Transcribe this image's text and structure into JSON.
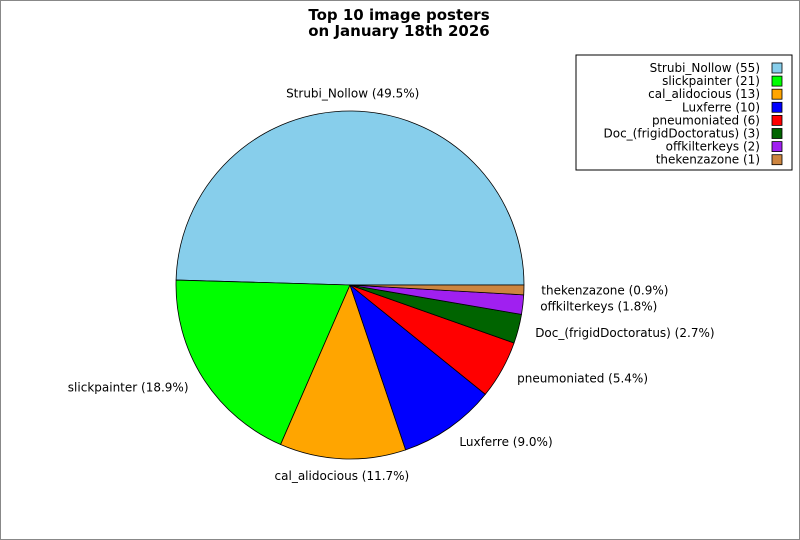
{
  "chart_data": {
    "type": "pie",
    "title_lines": [
      "Top 10 image posters",
      "on January 18th 2026"
    ],
    "slices": [
      {
        "name": "Strubi_Nollow",
        "count": 55,
        "percent": 49.5,
        "color": "#87ceeb"
      },
      {
        "name": "slickpainter",
        "count": 21,
        "percent": 18.9,
        "color": "#00ff00"
      },
      {
        "name": "cal_alidocious",
        "count": 13,
        "percent": 11.7,
        "color": "#ffa500"
      },
      {
        "name": "Luxferre",
        "count": 10,
        "percent": 9.0,
        "color": "#0000ff"
      },
      {
        "name": "pneumoniated",
        "count": 6,
        "percent": 5.4,
        "color": "#ff0000"
      },
      {
        "name": "Doc_(frigidDoctoratus)",
        "count": 3,
        "percent": 2.7,
        "color": "#006400"
      },
      {
        "name": "offkilterkeys",
        "count": 2,
        "percent": 1.8,
        "color": "#a020f0"
      },
      {
        "name": "thekenzazone",
        "count": 1,
        "percent": 0.9,
        "color": "#cd853f"
      }
    ],
    "slice_labels": [
      "Strubi_Nollow (49.5%)",
      "slickpainter (18.9%)",
      "cal_alidocious (11.7%)",
      "Luxferre (9.0%)",
      "pneumoniated (5.4%)",
      "Doc_(frigidDoctoratus) (2.7%)",
      "offkilterkeys (1.8%)",
      "thekenzazone (0.9%)"
    ],
    "legend_labels": [
      "Strubi_Nollow (55)",
      "slickpainter (21)",
      "cal_alidocious (13)",
      "Luxferre (10)",
      "pneumoniated (6)",
      "Doc_(frigidDoctoratus) (3)",
      "offkilterkeys (2)",
      "thekenzazone (1)"
    ],
    "legend_position": "top-right",
    "start_angle": "right (3 o'clock), counter-clockwise"
  }
}
